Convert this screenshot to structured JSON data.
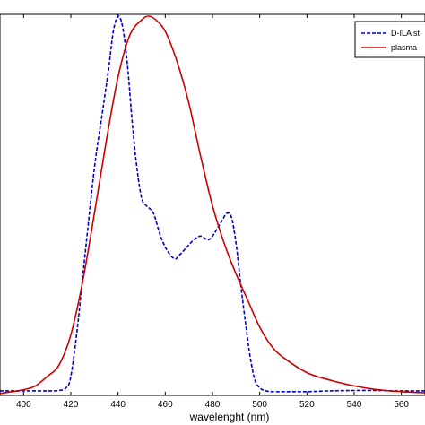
{
  "chart_data": {
    "type": "line",
    "title": "",
    "xlabel": "wavelenght (nm)",
    "ylabel": "",
    "xlim": [
      390,
      570
    ],
    "ylim": [
      0,
      1
    ],
    "x_ticks": [
      400,
      420,
      440,
      460,
      480,
      500,
      520,
      540,
      560
    ],
    "grid": false,
    "legend_position": "top-right",
    "series": [
      {
        "name": "D-ILA st",
        "color": "#0000cc",
        "style": "dashed",
        "x": [
          390,
          400,
          410,
          415,
          418,
          420,
          423,
          426,
          430,
          433,
          436,
          438,
          440,
          442,
          444,
          446,
          448,
          450,
          452,
          455,
          458,
          461,
          464,
          466,
          469,
          472,
          475,
          478,
          480,
          482,
          484,
          486,
          488,
          490,
          492,
          494,
          496,
          498,
          500,
          502,
          505,
          510,
          520,
          530,
          540,
          550,
          560,
          570
        ],
        "y": [
          0.012,
          0.012,
          0.012,
          0.013,
          0.02,
          0.05,
          0.19,
          0.37,
          0.6,
          0.73,
          0.86,
          0.96,
          1.0,
          0.97,
          0.87,
          0.72,
          0.6,
          0.52,
          0.5,
          0.48,
          0.42,
          0.38,
          0.36,
          0.37,
          0.39,
          0.41,
          0.42,
          0.41,
          0.42,
          0.44,
          0.46,
          0.48,
          0.47,
          0.4,
          0.29,
          0.19,
          0.1,
          0.04,
          0.02,
          0.013,
          0.01,
          0.01,
          0.01,
          0.012,
          0.013,
          0.013,
          0.012,
          0.012
        ]
      },
      {
        "name": "plasma",
        "color": "#cc0000",
        "style": "solid",
        "x": [
          390,
          395,
          400,
          405,
          410,
          415,
          420,
          425,
          430,
          435,
          440,
          445,
          450,
          453,
          456,
          460,
          465,
          470,
          475,
          480,
          485,
          490,
          495,
          500,
          505,
          510,
          520,
          530,
          540,
          550,
          560,
          570
        ],
        "y": [
          0.005,
          0.01,
          0.015,
          0.025,
          0.05,
          0.08,
          0.16,
          0.3,
          0.48,
          0.67,
          0.84,
          0.95,
          0.99,
          1.0,
          0.99,
          0.96,
          0.88,
          0.77,
          0.63,
          0.5,
          0.4,
          0.32,
          0.25,
          0.18,
          0.13,
          0.1,
          0.06,
          0.04,
          0.025,
          0.015,
          0.01,
          0.007
        ]
      }
    ]
  }
}
